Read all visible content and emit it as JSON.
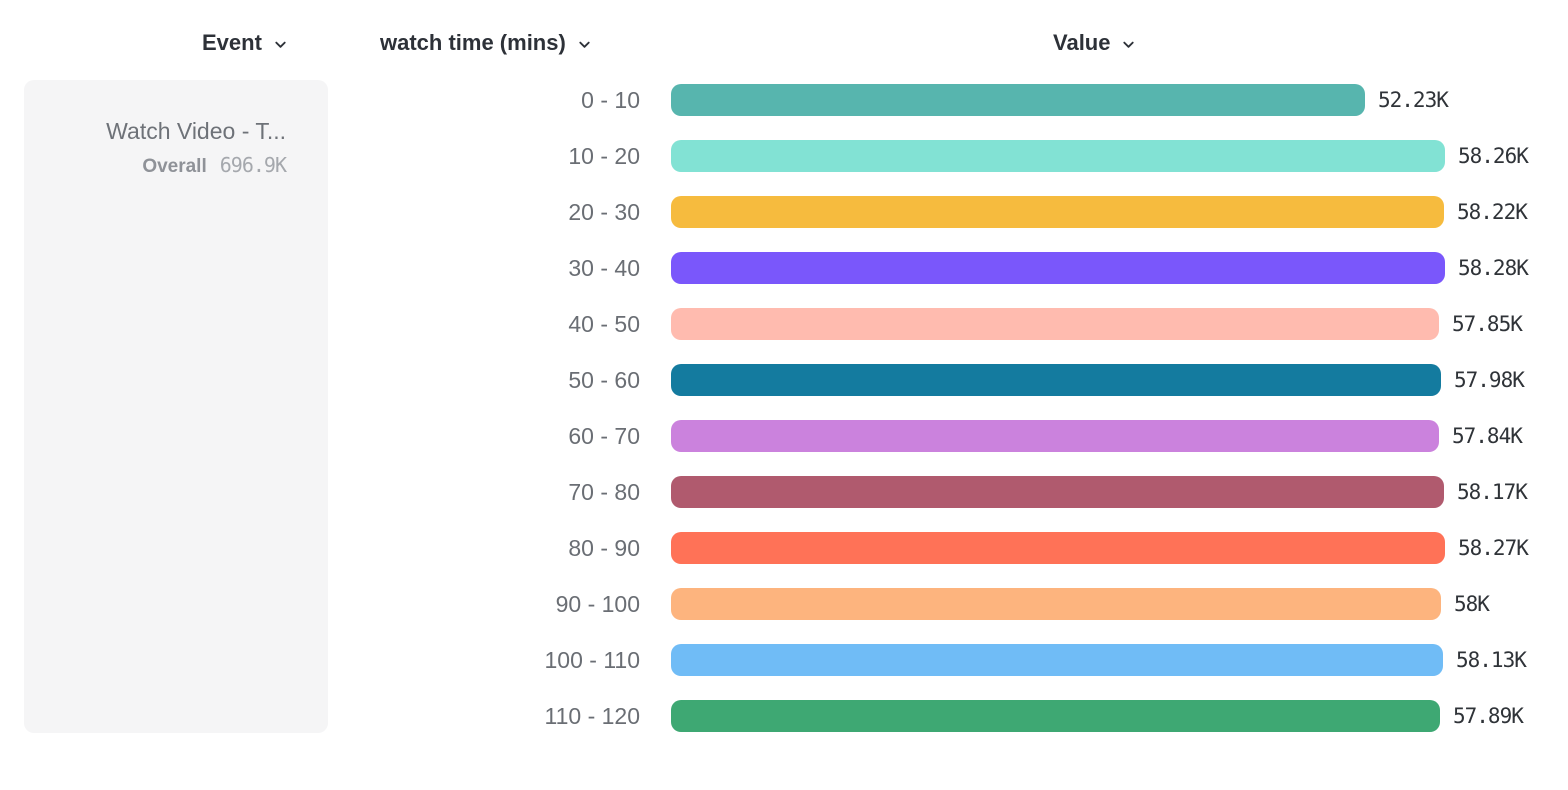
{
  "header": {
    "columns": [
      {
        "label": "Event"
      },
      {
        "label": "watch time (mins)"
      },
      {
        "label": "Value"
      }
    ]
  },
  "event_card": {
    "title": "Watch Video - T...",
    "overall_label": "Overall",
    "overall_value": "696.9K"
  },
  "chart_data": {
    "type": "bar",
    "orientation": "horizontal",
    "breakdown_property": "watch time (mins)",
    "metric_label": "Value",
    "categories": [
      "0 - 10",
      "10 - 20",
      "20 - 30",
      "30 - 40",
      "40 - 50",
      "50 - 60",
      "60 - 70",
      "70 - 80",
      "80 - 90",
      "90 - 100",
      "100 - 110",
      "110 - 120"
    ],
    "values": [
      52.23,
      58.26,
      58.22,
      58.28,
      57.85,
      57.98,
      57.84,
      58.17,
      58.27,
      58.0,
      58.13,
      57.89
    ],
    "unit": "K",
    "value_labels": [
      "52.23K",
      "58.26K",
      "58.22K",
      "58.28K",
      "57.85K",
      "57.98K",
      "57.84K",
      "58.17K",
      "58.27K",
      "58K",
      "58.13K",
      "57.89K"
    ],
    "colors": [
      "#57b5ae",
      "#82e2d4",
      "#f6bb3e",
      "#7a57fb",
      "#ffbbaf",
      "#147b9f",
      "#cb82dd",
      "#b05a6e",
      "#ff7257",
      "#fdb47e",
      "#70bcf6",
      "#3ea873"
    ],
    "xlim": [
      0,
      58.28
    ],
    "grid": false,
    "legend": false,
    "overall_total": "696.9K"
  }
}
